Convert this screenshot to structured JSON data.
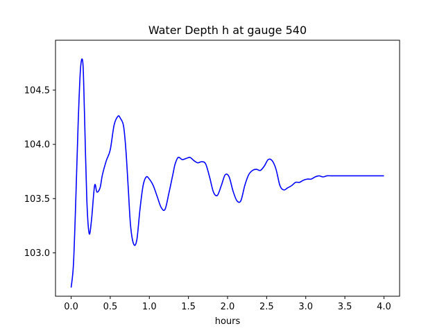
{
  "chart_data": {
    "type": "line",
    "title": "Water Depth h at gauge 540",
    "xlabel": "hours",
    "ylabel": "",
    "xlim": [
      -0.2,
      4.2
    ],
    "ylim": [
      102.6,
      104.96
    ],
    "grid": false,
    "legend": "none",
    "x_ticks": [
      0.0,
      0.5,
      1.0,
      1.5,
      2.0,
      2.5,
      3.0,
      3.5,
      4.0
    ],
    "x_tick_labels": [
      "0.0",
      "0.5",
      "1.0",
      "1.5",
      "2.0",
      "2.5",
      "3.0",
      "3.5",
      "4.0"
    ],
    "y_ticks": [
      103.0,
      103.5,
      104.0,
      104.5
    ],
    "y_tick_labels": [
      "103.0",
      "103.5",
      "104.0",
      "104.5"
    ],
    "series": [
      {
        "color": "#0000ff",
        "x": [
          0.0,
          0.03,
          0.06,
          0.09,
          0.12,
          0.15,
          0.17,
          0.2,
          0.23,
          0.26,
          0.3,
          0.33,
          0.37,
          0.4,
          0.45,
          0.5,
          0.55,
          0.6,
          0.63,
          0.67,
          0.7,
          0.73,
          0.76,
          0.8,
          0.84,
          0.88,
          0.92,
          0.96,
          1.0,
          1.05,
          1.1,
          1.15,
          1.2,
          1.25,
          1.3,
          1.33,
          1.37,
          1.42,
          1.47,
          1.52,
          1.57,
          1.62,
          1.67,
          1.72,
          1.77,
          1.82,
          1.87,
          1.92,
          1.97,
          2.02,
          2.07,
          2.12,
          2.17,
          2.22,
          2.27,
          2.32,
          2.37,
          2.42,
          2.47,
          2.52,
          2.57,
          2.62,
          2.67,
          2.72,
          2.77,
          2.82,
          2.87,
          2.92,
          2.97,
          3.02,
          3.07,
          3.12,
          3.17,
          3.22,
          3.27,
          3.32,
          3.37,
          3.42,
          3.47,
          3.52,
          3.57,
          3.62,
          3.67,
          3.72,
          3.77,
          3.82,
          3.87,
          3.92,
          3.97,
          4.0
        ],
        "y": [
          102.68,
          102.9,
          103.5,
          104.2,
          104.7,
          104.75,
          104.3,
          103.5,
          103.18,
          103.3,
          103.62,
          103.56,
          103.6,
          103.72,
          103.85,
          103.95,
          104.18,
          104.26,
          104.24,
          104.17,
          103.95,
          103.6,
          103.25,
          103.08,
          103.12,
          103.4,
          103.62,
          103.7,
          103.68,
          103.62,
          103.52,
          103.42,
          103.4,
          103.55,
          103.72,
          103.82,
          103.88,
          103.86,
          103.87,
          103.88,
          103.85,
          103.83,
          103.84,
          103.82,
          103.7,
          103.56,
          103.53,
          103.62,
          103.72,
          103.7,
          103.57,
          103.48,
          103.48,
          103.62,
          103.72,
          103.76,
          103.77,
          103.76,
          103.8,
          103.86,
          103.85,
          103.77,
          103.62,
          103.58,
          103.6,
          103.62,
          103.65,
          103.65,
          103.67,
          103.68,
          103.68,
          103.7,
          103.71,
          103.7,
          103.71,
          103.71,
          103.71,
          103.71,
          103.71,
          103.71,
          103.71,
          103.71,
          103.71,
          103.71,
          103.71,
          103.71,
          103.71,
          103.71,
          103.71,
          103.71
        ]
      }
    ]
  }
}
